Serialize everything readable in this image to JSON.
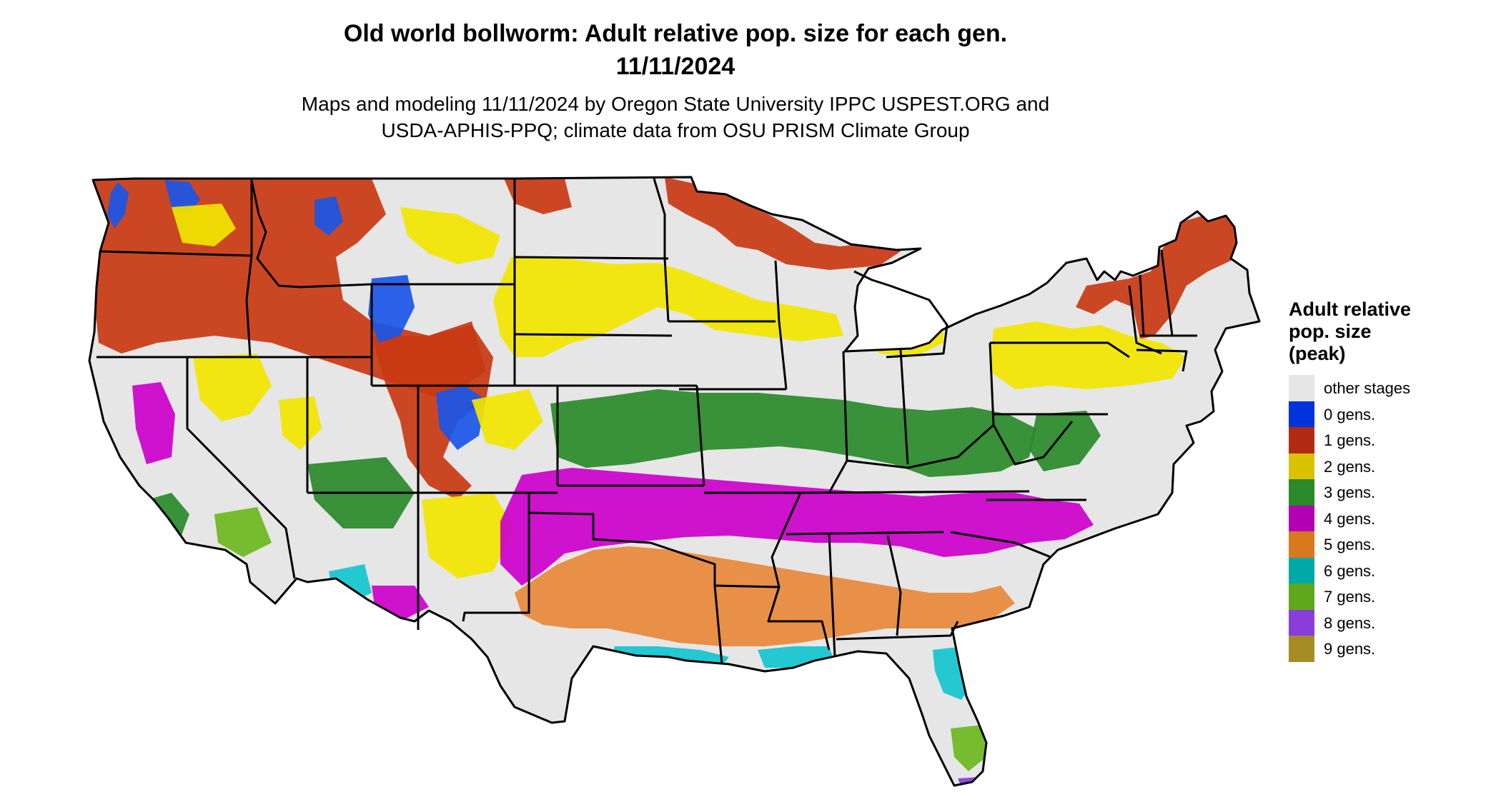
{
  "title_line1": "Old world bollworm: Adult relative pop. size for each gen.",
  "title_line2": "11/11/2024",
  "subtitle_line1": "Maps and modeling 11/11/2024 by Oregon State University IPPC USPEST.ORG and",
  "subtitle_line2": "USDA-APHIS-PPQ; climate data from OSU PRISM Climate Group",
  "legend": {
    "title_lines": [
      "Adult relative",
      "pop. size",
      "(peak)"
    ],
    "items": [
      {
        "label": "other stages",
        "color": "#e6e6e6"
      },
      {
        "label": "0 gens.",
        "color": "#0033dd"
      },
      {
        "label": "1 gens.",
        "color": "#b22a12"
      },
      {
        "label": "2 gens.",
        "color": "#d9c300"
      },
      {
        "label": "3 gens.",
        "color": "#2a8a2a"
      },
      {
        "label": "4 gens.",
        "color": "#b300b3"
      },
      {
        "label": "5 gens.",
        "color": "#d9791e"
      },
      {
        "label": "6 gens.",
        "color": "#00a8a8"
      },
      {
        "label": "7 gens.",
        "color": "#5fa81e"
      },
      {
        "label": "8 gens.",
        "color": "#8a3ddb"
      },
      {
        "label": "9 gens.",
        "color": "#a68c26"
      }
    ]
  },
  "map_colors": {
    "base": "#e6e6e6",
    "border": "#000000",
    "zero": "#1a56e8",
    "one": "#c93a14",
    "two": "#f2e600",
    "three": "#2a8a2a",
    "three_light": "#7fcf7f",
    "four": "#cc00cc",
    "five": "#e8893a",
    "six": "#12c6cf",
    "seven": "#6cb81e",
    "eight": "#8a3ddb"
  }
}
